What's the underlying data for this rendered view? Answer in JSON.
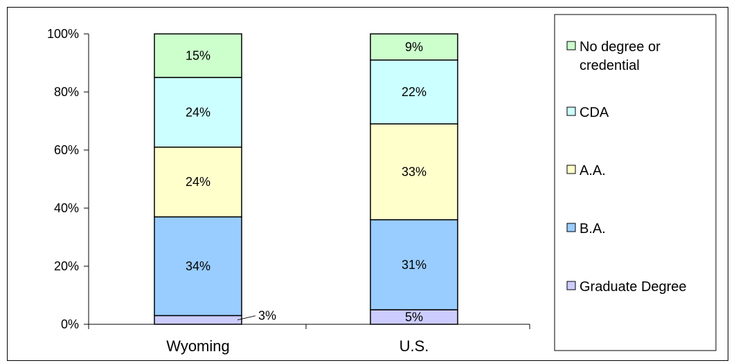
{
  "chart_data": {
    "type": "bar",
    "stacked": true,
    "percent_stacked": true,
    "title": "",
    "xlabel": "",
    "ylabel": "",
    "categories": [
      "Wyoming",
      "U.S."
    ],
    "ylim": [
      0,
      100
    ],
    "y_ticks": [
      "0%",
      "20%",
      "40%",
      "60%",
      "80%",
      "100%"
    ],
    "y_tick_values": [
      0,
      20,
      40,
      60,
      80,
      100
    ],
    "grid": false,
    "legend_placement": "right",
    "series": [
      {
        "name": "Graduate Degree",
        "values": [
          3,
          5
        ],
        "labels": [
          "3%",
          "5%"
        ],
        "color": "#ccccff"
      },
      {
        "name": "B.A.",
        "values": [
          34,
          31
        ],
        "labels": [
          "34%",
          "31%"
        ],
        "color": "#99ccff"
      },
      {
        "name": "A.A.",
        "values": [
          24,
          33
        ],
        "labels": [
          "24%",
          "33%"
        ],
        "color": "#ffffcc"
      },
      {
        "name": "CDA",
        "values": [
          24,
          22
        ],
        "labels": [
          "24%",
          "22%"
        ],
        "color": "#ccffff"
      },
      {
        "name": "No degree or credential",
        "values": [
          15,
          9
        ],
        "labels": [
          "15%",
          "9%"
        ],
        "color": "#ccffcc"
      }
    ],
    "legend": [
      {
        "lines": [
          "No degree or",
          "credential"
        ],
        "color": "#ccffcc"
      },
      {
        "lines": [
          "CDA"
        ],
        "color": "#ccffff"
      },
      {
        "lines": [
          "A.A."
        ],
        "color": "#ffffcc"
      },
      {
        "lines": [
          "B.A."
        ],
        "color": "#99ccff"
      },
      {
        "lines": [
          "Graduate Degree"
        ],
        "color": "#ccccff"
      }
    ]
  }
}
